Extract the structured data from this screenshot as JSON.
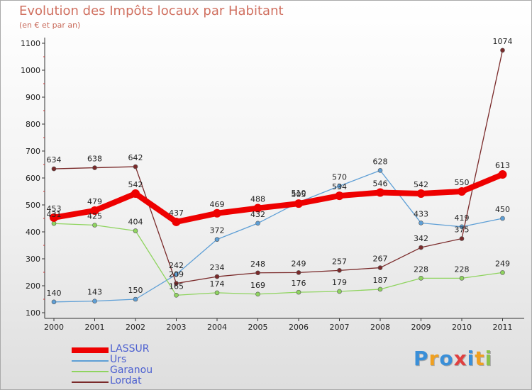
{
  "chart_data": {
    "type": "line",
    "title": "Evolution des Impôts locaux par Habitant",
    "subtitle": "(en € et par an)",
    "categories": [
      "2000",
      "2001",
      "2002",
      "2003",
      "2004",
      "2005",
      "2006",
      "2007",
      "2008",
      "2009",
      "2010",
      "2011"
    ],
    "ylim": [
      100,
      1100
    ],
    "yticks": [
      100,
      200,
      300,
      400,
      500,
      600,
      700,
      800,
      900,
      1000,
      1100
    ],
    "grid": false,
    "legend_position": "bottom-left",
    "series": [
      {
        "name": "LASSUR",
        "color": "#ee0000",
        "values": [
          453,
          479,
          542,
          437,
          469,
          488,
          505,
          534,
          546,
          542,
          550,
          613
        ]
      },
      {
        "name": "Urs",
        "color": "#5e9fd6",
        "values": [
          140,
          143,
          150,
          242,
          372,
          432,
          510,
          570,
          628,
          433,
          419,
          450
        ]
      },
      {
        "name": "Garanou",
        "color": "#8fd45f",
        "values": [
          431,
          425,
          404,
          165,
          174,
          169,
          176,
          179,
          187,
          228,
          228,
          249
        ]
      },
      {
        "name": "Lordat",
        "color": "#7a2a2a",
        "values": [
          634,
          638,
          642,
          209,
          234,
          248,
          249,
          257,
          267,
          342,
          375,
          1074
        ]
      }
    ]
  },
  "brand": {
    "letters": [
      "P",
      "r",
      "o",
      "x",
      "i",
      "t",
      "i"
    ],
    "colors": [
      "#3a8fd8",
      "#f0a020",
      "#3a8fd8",
      "#e04040",
      "#3a8fd8",
      "#f0a020",
      "#8bc34a"
    ]
  }
}
